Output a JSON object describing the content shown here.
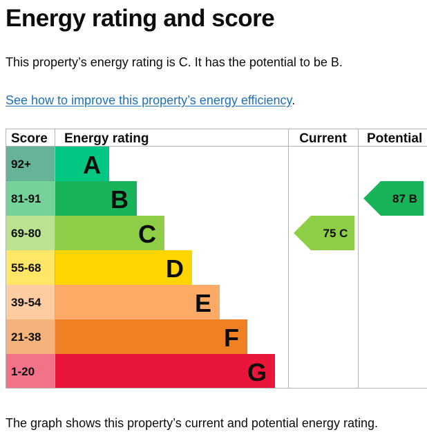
{
  "page": {
    "title": "Energy rating and score",
    "summary": "This property’s energy rating is C. It has the potential to be B.",
    "link_text": "See how to improve this property’s energy efficiency",
    "link_suffix": ".",
    "caption": "The graph shows this property’s current and potential energy rating."
  },
  "chart_data": {
    "type": "bar",
    "headers": {
      "score": "Score",
      "rating": "Energy rating",
      "current": "Current",
      "potential": "Potential"
    },
    "bands": [
      {
        "score": "92+",
        "letter": "A",
        "color": "#008054",
        "score_bg": "#66b398",
        "rating_color": "#00c781"
      },
      {
        "score": "81-91",
        "letter": "B",
        "color": "#19b459",
        "score_bg": "#75d29b",
        "rating_color": "#19b459"
      },
      {
        "score": "69-80",
        "letter": "C",
        "color": "#8dce46",
        "score_bg": "#bbe290",
        "rating_color": "#8dce46"
      },
      {
        "score": "55-68",
        "letter": "D",
        "color": "#ffd500",
        "score_bg": "#ffe666",
        "rating_color": "#ffd500"
      },
      {
        "score": "39-54",
        "letter": "E",
        "color": "#fcaa65",
        "score_bg": "#fdcca3",
        "rating_color": "#fcaa65"
      },
      {
        "score": "21-38",
        "letter": "F",
        "color": "#ef8023",
        "score_bg": "#f5b37b",
        "rating_color": "#ef8023"
      },
      {
        "score": "1-20",
        "letter": "G",
        "color": "#e9153b",
        "score_bg": "#f27389",
        "rating_color": "#e9153b"
      }
    ],
    "current": {
      "value": 75,
      "letter": "C",
      "color": "#8dce46"
    },
    "potential": {
      "value": 87,
      "letter": "B",
      "color": "#19b459"
    }
  }
}
